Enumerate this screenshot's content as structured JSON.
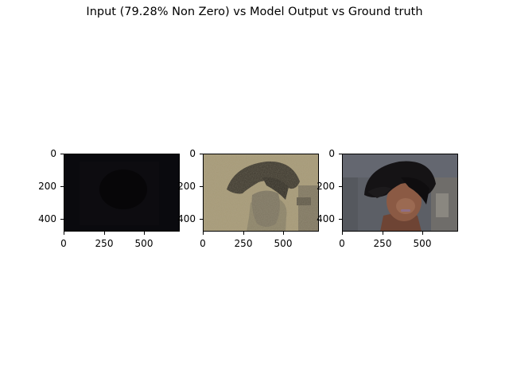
{
  "figure": {
    "title": "Input (79.28% Non Zero) vs Model Output vs Ground truth"
  },
  "panels": [
    {
      "name": "input",
      "yticks": [
        "0",
        "200",
        "400"
      ],
      "xticks": [
        "0",
        "250",
        "500"
      ]
    },
    {
      "name": "model-output",
      "yticks": [
        "0",
        "200",
        "400"
      ],
      "xticks": [
        "0",
        "250",
        "500"
      ]
    },
    {
      "name": "ground-truth",
      "yticks": [
        "0",
        "200",
        "400"
      ],
      "xticks": [
        "0",
        "250",
        "500"
      ]
    }
  ],
  "colors": {
    "input_bg": "#0b0b10",
    "output_bg": "#a89a78",
    "ground_bg": "#5e6168",
    "hair": "#141214",
    "skin": "#8a5a45"
  }
}
